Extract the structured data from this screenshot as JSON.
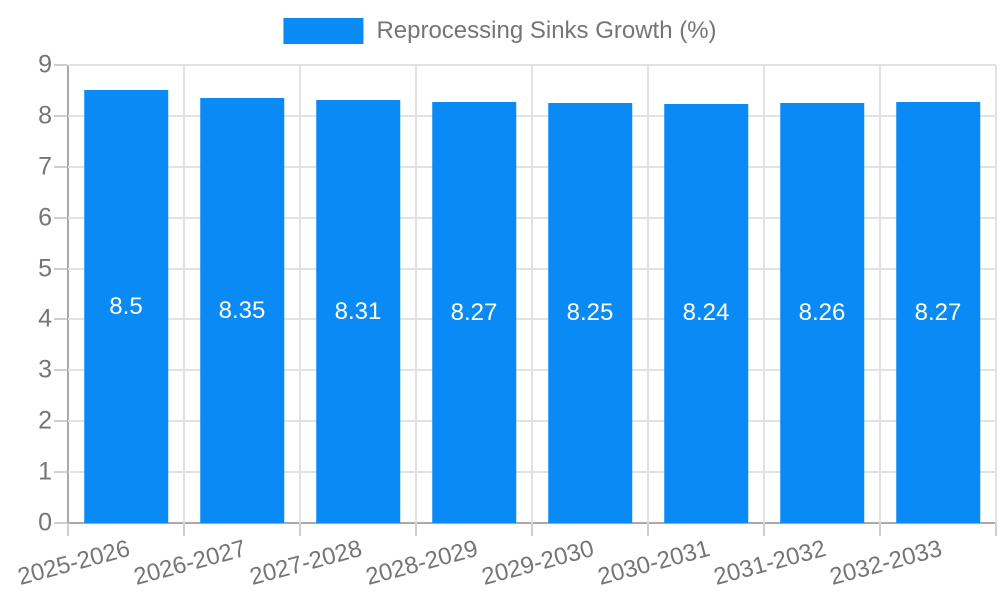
{
  "legend": {
    "label": "Reprocessing Sinks Growth (%)"
  },
  "chart_data": {
    "type": "bar",
    "title": "Reprocessing Sinks Growth (%)",
    "categories": [
      "2025-2026",
      "2026-2027",
      "2027-2028",
      "2028-2029",
      "2029-2030",
      "2030-2031",
      "2031-2032",
      "2032-2033"
    ],
    "values": [
      8.5,
      8.35,
      8.31,
      8.27,
      8.25,
      8.24,
      8.26,
      8.27
    ],
    "value_labels": [
      "8.5",
      "8.35",
      "8.31",
      "8.27",
      "8.25",
      "8.24",
      "8.26",
      "8.27"
    ],
    "xlabel": "",
    "ylabel": "",
    "ylim": [
      0,
      9
    ],
    "yticks": [
      0,
      1,
      2,
      3,
      4,
      5,
      6,
      7,
      8,
      9
    ],
    "grid": true,
    "legend_position": "top-center",
    "x_label_rotation_deg": -15,
    "colors": {
      "bar": "#0a8af5",
      "grid": "#e2e2e2",
      "axis": "#a9a9a9",
      "tick": "#cfcfcf",
      "axis_text": "#757575",
      "value_text": "#ffffff",
      "background": "#ffffff"
    }
  }
}
